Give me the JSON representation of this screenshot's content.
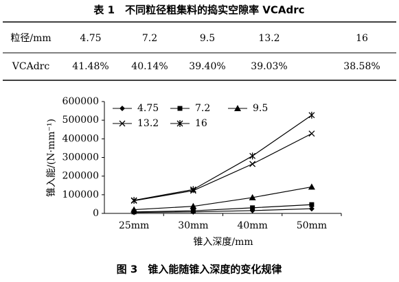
{
  "table": {
    "title": "表 1　不同粒径粗集料的捣实空隙率 VCAdrc",
    "rows": [
      [
        "粒径/mm",
        "4.75",
        "7.2",
        "9.5",
        "13.2",
        "16"
      ],
      [
        "VCAdrc",
        "41.48%",
        "40.14%",
        "39.40%",
        "39.03%",
        "38.58%"
      ]
    ]
  },
  "chart_data": {
    "type": "line",
    "y_label": "锥入能/(N·mm⁻¹)",
    "x_label": "锥入深度/mm",
    "categories": [
      "25mm",
      "30mm",
      "40mm",
      "50mm"
    ],
    "series": [
      {
        "name": "4.75",
        "color": "#000000",
        "marker": "diamond",
        "values": [
          5000,
          8000,
          15000,
          25000
        ]
      },
      {
        "name": "7.2",
        "color": "#000000",
        "marker": "square",
        "values": [
          8000,
          14000,
          30000,
          47000
        ]
      },
      {
        "name": "9.5",
        "color": "#000000",
        "marker": "triangle",
        "values": [
          20000,
          38000,
          85000,
          142000
        ]
      },
      {
        "name": "13.2",
        "color": "#000000",
        "marker": "x",
        "values": [
          68000,
          122000,
          265000,
          428000
        ]
      },
      {
        "name": "16",
        "color": "#000000",
        "marker": "asterisk",
        "values": [
          70000,
          128000,
          308000,
          527000
        ]
      }
    ],
    "ylim": [
      0,
      600000
    ],
    "yticks": [
      0,
      100000,
      200000,
      300000,
      400000,
      500000,
      600000
    ],
    "legend": "upper-left",
    "caption": "图 3　锥入能随锥入深度的变化规律"
  }
}
